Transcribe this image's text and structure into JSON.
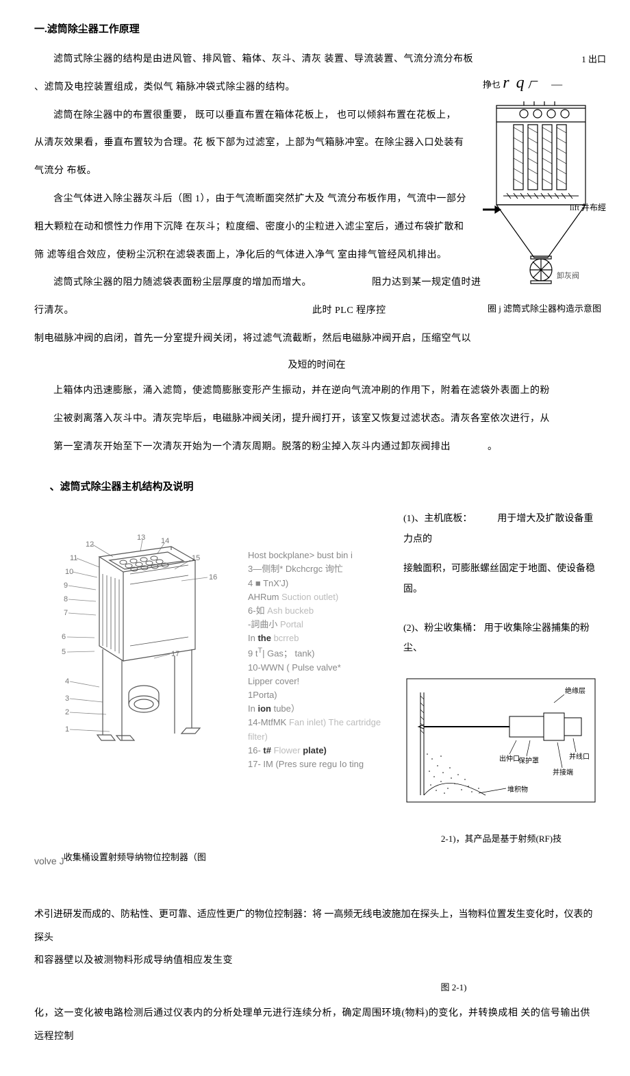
{
  "heading1": "一.滤筒除尘器工作原理",
  "p1": "滤筒式除尘器的结构是由进风管、排风管、箱体、灰斗、清灰 装置、导流装置、气流分流分布板",
  "p1b": "、滤筒及电控装置组成，类似气 箱脉冲袋式除尘器的结构。",
  "p2a": "滤筒在除尘器中的布置很重要，  既可以垂直布置在箱体花板上，  也可以倾斜布置在花板上，",
  "p2b": "从清灰效果看，垂直布置较为合理。花 板下部为过滤室，上部为气箱脉冲室。在除尘器入口处装有",
  "p2c": "气流分 布板。",
  "p3a": "含尘气体进入除尘器灰斗后（图 1），由于气流断面突然扩大及 气流分布板作用，气流中一部分",
  "p3b": "粗大颗粒在动和惯性力作用下沉降 在灰斗；粒度细、密度小的尘粒进入滤尘室后，通过布袋扩散和",
  "p3c": "筛 滤等组合效应，使粉尘沉积在滤袋表面上，净化后的气体进入净气 室由排气管经风机排出。",
  "p4a": "滤筒式除尘器的阻力随滤袋表面粉尘层厚度的增加而增大。",
  "p4b": "阻力达到某一规定值时进",
  "p4c": "行清灰。",
  "p4d": "此时 PLC 程序控",
  "p5a": "制电磁脉冲阀的启闭，首先一分室提升阀关闭，将过滤气流截断，然后电磁脉冲阀开启，压缩空气以",
  "p5b": "及短的时间在",
  "p6a": "上箱体内迅速膨胀，涌入滤筒，使滤筒膨胀变形产生振动，并在逆向气流冲刷的作用下，附着在滤袋外表面上的粉",
  "p6b": "尘被剥离落入灰斗中。清灰完毕后，电磁脉冲阀关闭，提升阀打开，该室又恢复过滤状态。清灰各室依次进行，从",
  "p6c": "第一室清灰开始至下一次清灰开始为一个清灰周期。脱落的粉尘掉入灰斗内通过卸灰阀排出",
  "p6d": "。",
  "heading2": "、滤筒式除尘器主机结构及说明",
  "fig1": {
    "outlet": "1 出口",
    "zheng": "挣乜",
    "rq": "r q",
    "sub": "厂",
    "dash": "—",
    "lift": "lift 井布經",
    "valve_label": "卸灰阀",
    "caption": "圈 j 滤筒式除尘器构造示意图"
  },
  "struct": {
    "numbers": [
      "1",
      "2",
      "3",
      "4",
      "5",
      "6",
      "7",
      "8",
      "9",
      "10",
      "11",
      "12",
      "13",
      "14",
      "15",
      "16",
      "17"
    ],
    "legend": [
      {
        "t": "Host bockplane> bust bin i",
        "c": "#888"
      },
      {
        "t": "3—侧制* Dkchcrgc 询忙",
        "c": "#888"
      },
      {
        "t": "4 ■ TnX'J)",
        "c": "#888"
      },
      {
        "t": "AHRum ",
        "c": "#888",
        "after": "Suction outlet)",
        "ac": "#bbb"
      },
      {
        "t": "6-如 ",
        "c": "#888",
        "after": "Ash buckeb",
        "ac": "#bbb"
      },
      {
        "t": "-詞曲小 ",
        "c": "#888",
        "after": "Portal",
        "ac": "#bbb"
      },
      {
        "t": "In ",
        "c": "#888",
        "kw": "the",
        "after": " bcrreb",
        "ac": "#bbb"
      },
      {
        "t": "9 t",
        "sup": "T",
        "after": "| Gas；  tank)",
        "c": "#888"
      },
      {
        "t": "10-WWN ( Pulse valve*",
        "c": "#888"
      },
      {
        "t": "Lipper cover!",
        "c": "#888"
      },
      {
        "t": "1Porta)",
        "c": "#888"
      },
      {
        "t": "In ",
        "c": "#888",
        "kw": "ion",
        "after": " tube）",
        "ac": "#888"
      },
      {
        "t": "14-MtfMK ",
        "c": "#888",
        "after": "Fan inlet) The cartridge",
        "ac": "#bbb"
      },
      {
        "t": "filter)",
        "c": "#bbb"
      },
      {
        "t": "16- ",
        "c": "#888",
        "kw": "t#",
        "after": " Flower ",
        "ac": "#bbb",
        "kw2": "plate)"
      },
      {
        "t": "17- IM (Pres sure regu Io ting",
        "c": "#888"
      }
    ]
  },
  "right": {
    "item1_label": "(1)、主机底板：",
    "item1_gap": "      ",
    "item1_text1": "用于增大及扩散设备重力点的",
    "item1_text2": "接触面积，可膨胀螺丝固定于地面、使设备稳  固。",
    "item2_label": "(2)、粉尘收集桶：",
    "item2_text": "用于收集除尘器捕集的粉尘、",
    "fig21_caption": "2-1)，其产品是基于射频(RF)技",
    "fig21_labels": {
      "a": "绝缘层",
      "b": "出仲",
      "c": "保护罩",
      "d": "并线口",
      "e": "并接端",
      "f": "堆积物"
    }
  },
  "collect": {
    "volve": "volve J",
    "text": "收集桶设置射频导纳物位控制器（图"
  },
  "lower1": "术引进研发而成的、防粘性、更可靠、适应性更广的物位控制器：将 一高频无线电波施加在探头上，当物料位置发生变化时，仪表的探头",
  "lower2": "和容器壁以及被测物料形成导纳值相应发生变",
  "fig21label": "图  2-1)",
  "lower3": "化，这一变化被电路检测后通过仪表内的分析处理单元进行连续分析，确定周围环境(物料)的变化，并转换成相  关的信号输出供远程控制"
}
